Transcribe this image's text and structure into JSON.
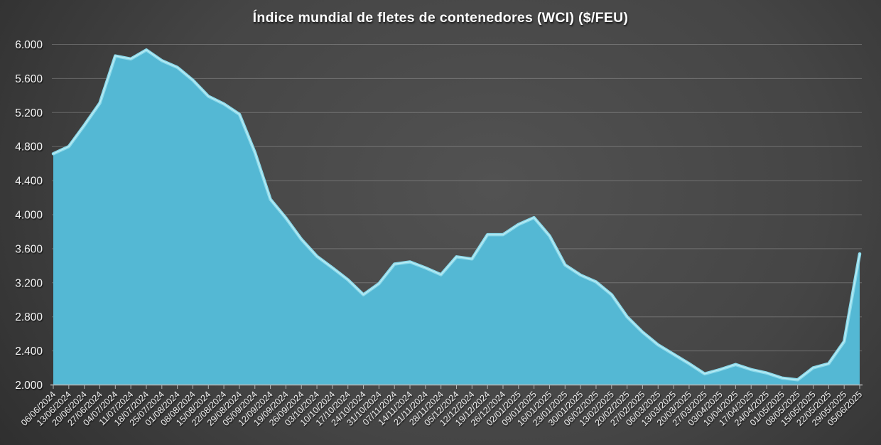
{
  "title": "Índice mundial de fletes de contenedores (WCI) ($/FEU)",
  "chart_data": {
    "type": "area",
    "title": "Índice mundial de fletes de contenedores (WCI) ($/FEU)",
    "xlabel": "",
    "ylabel": "",
    "legend": "none",
    "grid": true,
    "x_label_rotation": -45,
    "ylim": [
      2000,
      6000
    ],
    "ytick_step": 400,
    "y_ticks": [
      "2.000",
      "2.400",
      "2.800",
      "3.200",
      "3.600",
      "4.000",
      "4.400",
      "4.800",
      "5.200",
      "5.600",
      "6.000"
    ],
    "x": [
      "06/06/2024",
      "13/06/2024",
      "20/06/2024",
      "27/06/2024",
      "04/07/2024",
      "11/07/2024",
      "18/07/2024",
      "25/07/2024",
      "01/08/2024",
      "08/08/2024",
      "15/08/2024",
      "22/08/2024",
      "29/08/2024",
      "05/09/2024",
      "12/09/2024",
      "19/09/2024",
      "26/09/2024",
      "03/10/2024",
      "10/10/2024",
      "17/10/2024",
      "24/10/2024",
      "31/10/2024",
      "07/11/2024",
      "14/11/2024",
      "21/11/2024",
      "28/11/2024",
      "05/12/2024",
      "12/12/2024",
      "19/12/2024",
      "26/12/2024",
      "02/01/2025",
      "09/01/2025",
      "16/01/2025",
      "23/01/2025",
      "30/01/2025",
      "06/02/2025",
      "13/02/2025",
      "20/02/2025",
      "27/02/2025",
      "06/03/2025",
      "13/03/2025",
      "20/03/2025",
      "27/03/2025",
      "03/04/2025",
      "10/04/2025",
      "17/04/2025",
      "24/04/2025",
      "01/05/2025",
      "08/05/2025",
      "15/05/2025",
      "22/05/2025",
      "29/05/2025",
      "05/06/2025"
    ],
    "series": [
      {
        "name": "WCI ($/FEU)",
        "values": [
          4716,
          4800,
          5050,
          5310,
          5865,
          5830,
          5935,
          5810,
          5730,
          5580,
          5390,
          5300,
          5180,
          4730,
          4180,
          3960,
          3710,
          3510,
          3375,
          3235,
          3060,
          3190,
          3420,
          3445,
          3375,
          3295,
          3505,
          3480,
          3765,
          3765,
          3885,
          3965,
          3750,
          3410,
          3290,
          3210,
          3060,
          2800,
          2620,
          2470,
          2360,
          2250,
          2130,
          2180,
          2240,
          2180,
          2140,
          2080,
          2060,
          2200,
          2250,
          2510,
          3540
        ]
      }
    ]
  },
  "colors": {
    "area_fill": "#54b8d4",
    "area_edge_highlight": "#8bd9ea",
    "area_edge_inner": "#c2eff7",
    "axis_label": "#e9e9e9",
    "y_label": "#f2f2f2",
    "title_text": "#ffffff"
  }
}
